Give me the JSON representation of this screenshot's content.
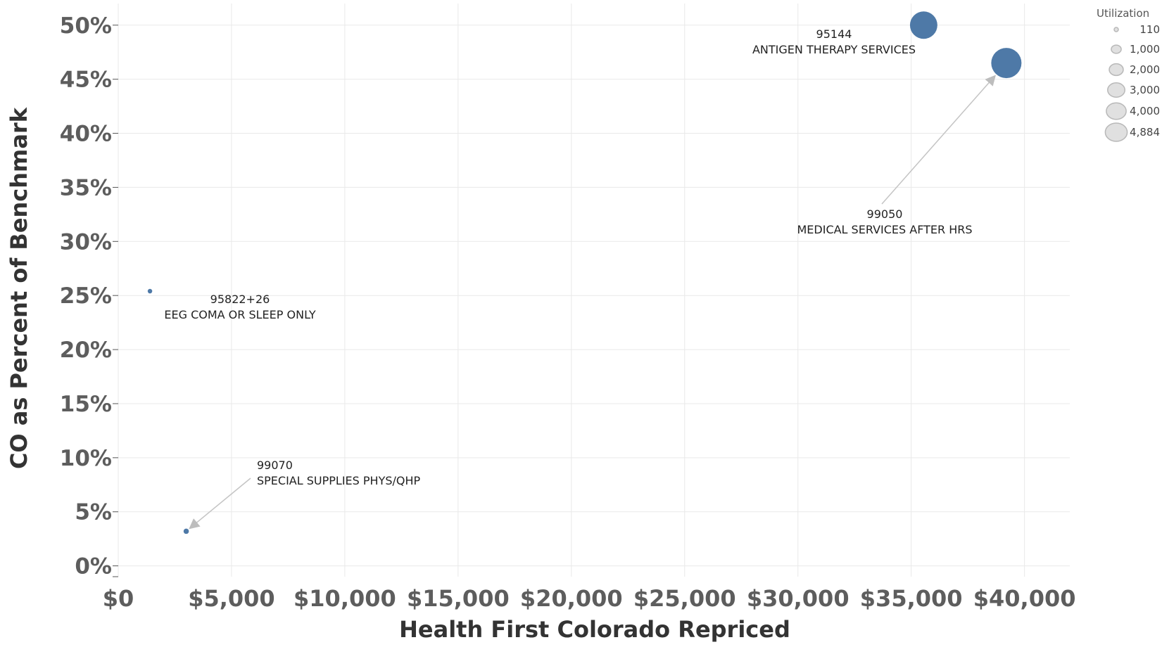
{
  "chart_data": {
    "type": "scatter",
    "xlabel": "Health First Colorado Repriced",
    "ylabel": "CO as Percent of Benchmark",
    "xlim": [
      0,
      42000
    ],
    "ylim": [
      -1,
      52
    ],
    "x_ticks": [
      0,
      5000,
      10000,
      15000,
      20000,
      25000,
      30000,
      35000,
      40000
    ],
    "x_tick_labels": [
      "$0",
      "$5,000",
      "$10,000",
      "$15,000",
      "$20,000",
      "$25,000",
      "$30,000",
      "$35,000",
      "$40,000"
    ],
    "y_ticks": [
      0,
      5,
      10,
      15,
      20,
      25,
      30,
      35,
      40,
      45,
      50
    ],
    "y_tick_labels": [
      "0%",
      "5%",
      "10%",
      "15%",
      "20%",
      "25%",
      "30%",
      "35%",
      "40%",
      "45%",
      "50%"
    ],
    "grid": true,
    "size_legend": {
      "title": "Utilization",
      "placement": "top-right",
      "items": [
        {
          "value": 110,
          "label": "110"
        },
        {
          "value": 1000,
          "label": "1,000"
        },
        {
          "value": 2000,
          "label": "2,000"
        },
        {
          "value": 3000,
          "label": "3,000"
        },
        {
          "value": 4000,
          "label": "4,000"
        },
        {
          "value": 4884,
          "label": "4,884"
        }
      ]
    },
    "points": [
      {
        "code": "95144",
        "description": "ANTIGEN THERAPY SERVICES",
        "x": 35550,
        "y": 50,
        "size": 4000,
        "color": "#4e79a7"
      },
      {
        "code": "99050",
        "description": "MEDICAL SERVICES AFTER HRS",
        "x": 39200,
        "y": 46.5,
        "size": 4884,
        "color": "#4e79a7"
      },
      {
        "code": "95822+26",
        "description": "EEG COMA OR SLEEP ONLY",
        "x": 1400,
        "y": 25.4,
        "size": 110,
        "color": "#4e79a7"
      },
      {
        "code": "99070",
        "description": "SPECIAL SUPPLIES PHYS/QHP",
        "x": 3000,
        "y": 3.2,
        "size": 150,
        "color": "#4e79a7"
      }
    ]
  }
}
